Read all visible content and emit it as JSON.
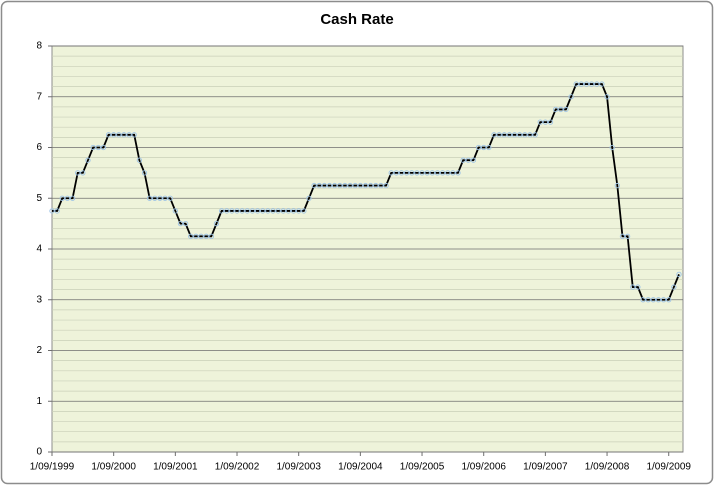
{
  "chart_data": {
    "type": "line",
    "title": "Cash Rate",
    "x": [
      "1/09/1999",
      "1/10/1999",
      "1/11/1999",
      "1/12/1999",
      "1/01/2000",
      "1/02/2000",
      "1/03/2000",
      "1/04/2000",
      "1/05/2000",
      "1/06/2000",
      "1/07/2000",
      "1/08/2000",
      "1/09/2000",
      "1/10/2000",
      "1/11/2000",
      "1/12/2000",
      "1/01/2001",
      "1/02/2001",
      "1/03/2001",
      "1/04/2001",
      "1/05/2001",
      "1/06/2001",
      "1/07/2001",
      "1/08/2001",
      "1/09/2001",
      "1/10/2001",
      "1/11/2001",
      "1/12/2001",
      "1/01/2002",
      "1/02/2002",
      "1/03/2002",
      "1/04/2002",
      "1/05/2002",
      "1/06/2002",
      "1/07/2002",
      "1/08/2002",
      "1/09/2002",
      "1/10/2002",
      "1/11/2002",
      "1/12/2002",
      "1/01/2003",
      "1/02/2003",
      "1/03/2003",
      "1/04/2003",
      "1/05/2003",
      "1/06/2003",
      "1/07/2003",
      "1/08/2003",
      "1/09/2003",
      "1/10/2003",
      "1/11/2003",
      "1/12/2003",
      "1/01/2004",
      "1/02/2004",
      "1/03/2004",
      "1/04/2004",
      "1/05/2004",
      "1/06/2004",
      "1/07/2004",
      "1/08/2004",
      "1/09/2004",
      "1/10/2004",
      "1/11/2004",
      "1/12/2004",
      "1/01/2005",
      "1/02/2005",
      "1/03/2005",
      "1/04/2005",
      "1/05/2005",
      "1/06/2005",
      "1/07/2005",
      "1/08/2005",
      "1/09/2005",
      "1/10/2005",
      "1/11/2005",
      "1/12/2005",
      "1/01/2006",
      "1/02/2006",
      "1/03/2006",
      "1/04/2006",
      "1/05/2006",
      "1/06/2006",
      "1/07/2006",
      "1/08/2006",
      "1/09/2006",
      "1/10/2006",
      "1/11/2006",
      "1/12/2006",
      "1/01/2007",
      "1/02/2007",
      "1/03/2007",
      "1/04/2007",
      "1/05/2007",
      "1/06/2007",
      "1/07/2007",
      "1/08/2007",
      "1/09/2007",
      "1/10/2007",
      "1/11/2007",
      "1/12/2007",
      "1/01/2008",
      "1/02/2008",
      "1/03/2008",
      "1/04/2008",
      "1/05/2008",
      "1/06/2008",
      "1/07/2008",
      "1/08/2008",
      "1/09/2008",
      "1/10/2008",
      "1/11/2008",
      "1/12/2008",
      "1/01/2009",
      "1/02/2009",
      "1/03/2009",
      "1/04/2009",
      "1/05/2009",
      "1/06/2009",
      "1/07/2009",
      "1/08/2009",
      "1/09/2009",
      "1/10/2009",
      "1/11/2009"
    ],
    "values": [
      4.75,
      4.75,
      5,
      5,
      5,
      5.5,
      5.5,
      5.75,
      6,
      6,
      6,
      6.25,
      6.25,
      6.25,
      6.25,
      6.25,
      6.25,
      5.75,
      5.5,
      5,
      5,
      5,
      5,
      5,
      4.75,
      4.5,
      4.5,
      4.25,
      4.25,
      4.25,
      4.25,
      4.25,
      4.5,
      4.75,
      4.75,
      4.75,
      4.75,
      4.75,
      4.75,
      4.75,
      4.75,
      4.75,
      4.75,
      4.75,
      4.75,
      4.75,
      4.75,
      4.75,
      4.75,
      4.75,
      5,
      5.25,
      5.25,
      5.25,
      5.25,
      5.25,
      5.25,
      5.25,
      5.25,
      5.25,
      5.25,
      5.25,
      5.25,
      5.25,
      5.25,
      5.25,
      5.5,
      5.5,
      5.5,
      5.5,
      5.5,
      5.5,
      5.5,
      5.5,
      5.5,
      5.5,
      5.5,
      5.5,
      5.5,
      5.5,
      5.75,
      5.75,
      5.75,
      6,
      6,
      6,
      6.25,
      6.25,
      6.25,
      6.25,
      6.25,
      6.25,
      6.25,
      6.25,
      6.25,
      6.5,
      6.5,
      6.5,
      6.75,
      6.75,
      6.75,
      7,
      7.25,
      7.25,
      7.25,
      7.25,
      7.25,
      7.25,
      7,
      6,
      5.25,
      4.25,
      4.25,
      3.25,
      3.25,
      3,
      3,
      3,
      3,
      3,
      3,
      3.25,
      3.5
    ],
    "color": "#000000",
    "marker_color": "#9dc3e6",
    "xticks": [
      "1/09/1999",
      "1/09/2000",
      "1/09/2001",
      "1/09/2002",
      "1/09/2003",
      "1/09/2004",
      "1/09/2005",
      "1/09/2006",
      "1/09/2007",
      "1/09/2008",
      "1/09/2009"
    ],
    "ylim": [
      0,
      8
    ],
    "yticks": [
      0,
      1,
      2,
      3,
      4,
      5,
      6,
      7,
      8
    ],
    "grid": true
  }
}
